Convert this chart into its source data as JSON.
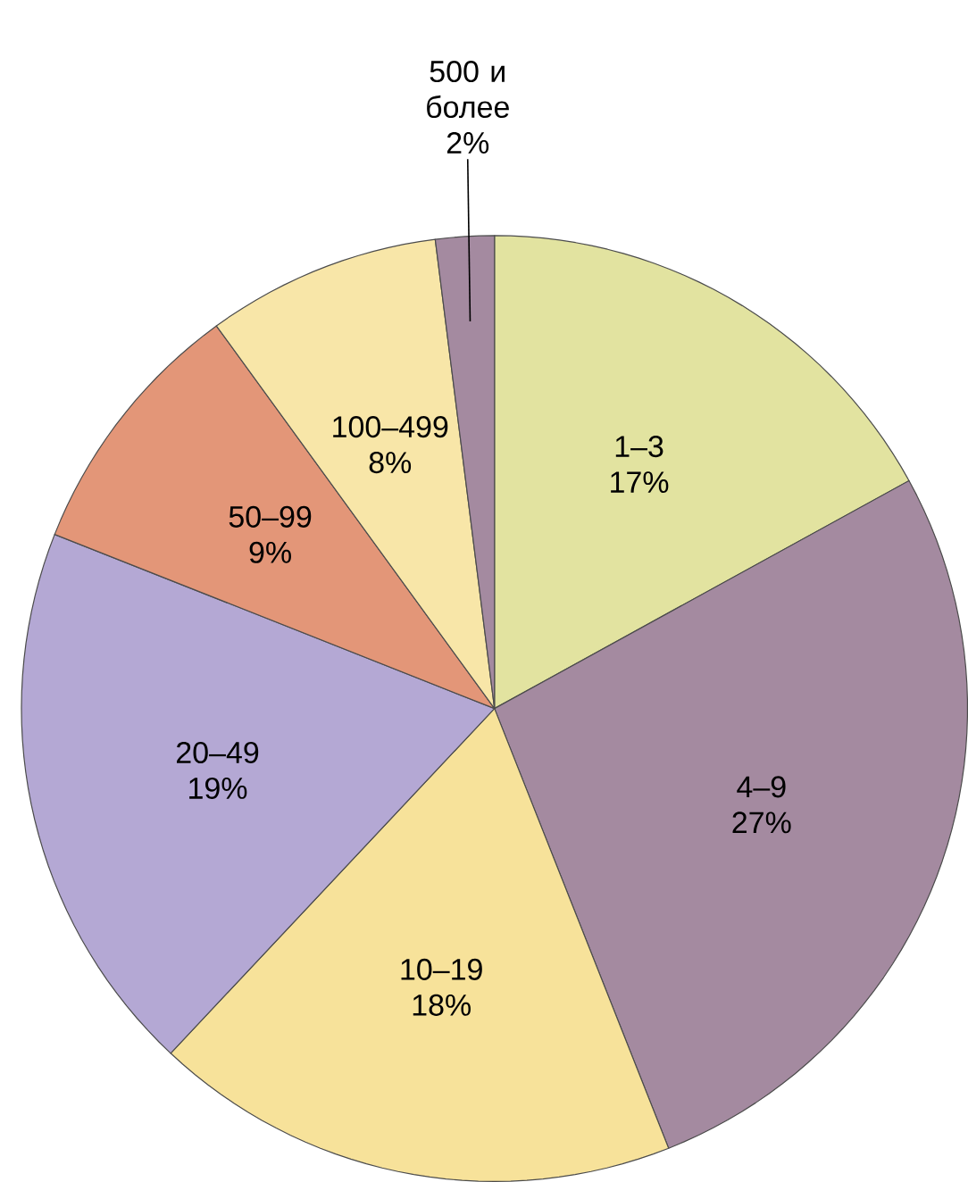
{
  "chart_data": {
    "type": "pie",
    "categories": [
      "1–3",
      "4–9",
      "10–19",
      "20–49",
      "50–99",
      "100–499",
      "500 и более"
    ],
    "values": [
      17,
      27,
      18,
      19,
      9,
      8,
      2
    ],
    "value_labels": [
      "17%",
      "27%",
      "18%",
      "19%",
      "9%",
      "8%",
      "2%"
    ],
    "colors": [
      "#e2e3a0",
      "#a48aa0",
      "#f7e29a",
      "#b4a8d4",
      "#e39678",
      "#f8e6a8",
      "#a48aa0"
    ]
  }
}
